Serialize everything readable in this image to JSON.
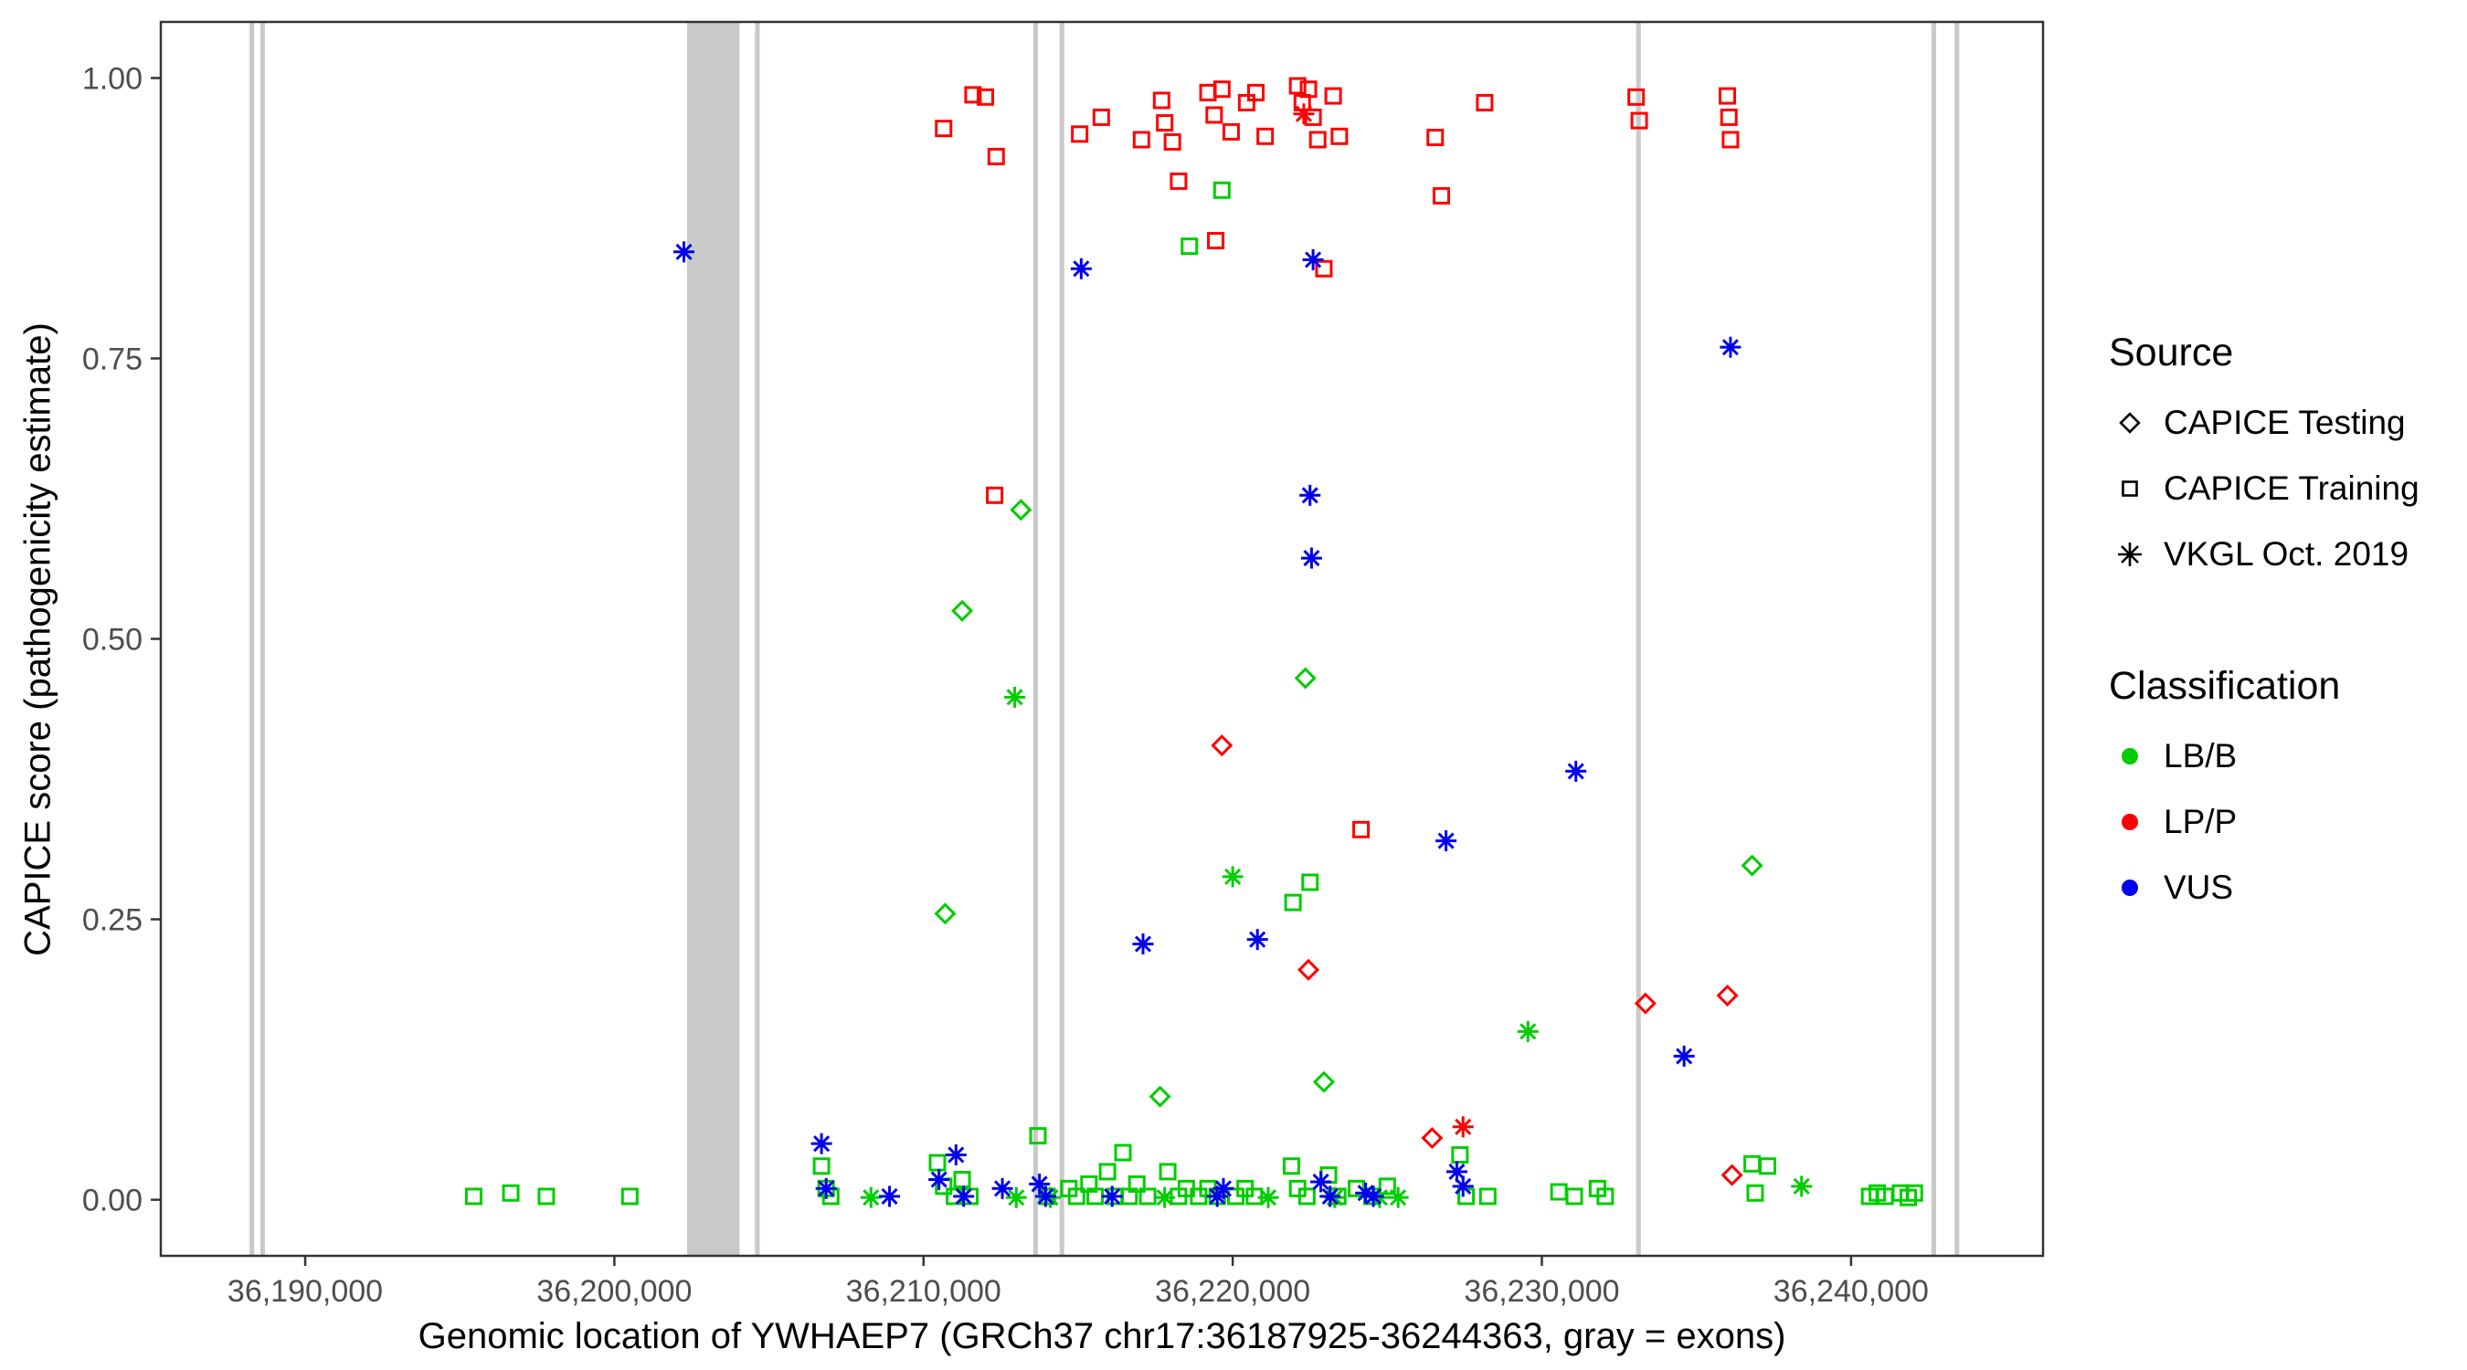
{
  "figure": {
    "background": "#ffffff",
    "panel_border": "#333333",
    "tick_color": "#333333",
    "tick_label_color": "#4d4d4d"
  },
  "legend": {
    "source": {
      "title": "Source",
      "items": [
        {
          "label": "CAPICE Testing",
          "shape": "diamond"
        },
        {
          "label": "CAPICE Training",
          "shape": "square"
        },
        {
          "label": "VKGL Oct. 2019",
          "shape": "asterisk"
        }
      ]
    },
    "classification": {
      "title": "Classification",
      "items": [
        {
          "label": "LB/B",
          "color": "#00CD00"
        },
        {
          "label": "LP/P",
          "color": "#FF0000"
        },
        {
          "label": "VUS",
          "color": "#0000EE"
        }
      ]
    }
  },
  "chart_data": {
    "type": "scatter",
    "title": "",
    "xlabel": "Genomic location of YWHAEP7 (GRCh37 chr17:36187925-36244363, gray = exons)",
    "ylabel": "CAPICE score (pathogenicity estimate)",
    "xlim": [
      36185330,
      36246210
    ],
    "ylim": [
      -0.05,
      1.05
    ],
    "x_ticks": [
      36190000,
      36200000,
      36210000,
      36220000,
      36230000,
      36240000
    ],
    "x_tick_labels": [
      "36,190,000",
      "36,200,000",
      "36,210,000",
      "36,220,000",
      "36,230,000",
      "36,240,000"
    ],
    "y_ticks": [
      0,
      0.25,
      0.5,
      0.75,
      1
    ],
    "y_tick_labels": [
      "0.00",
      "0.25",
      "0.50",
      "0.75",
      "1.00"
    ],
    "grid": false,
    "legend_position": "right",
    "exon_color": "#C9C9C9",
    "exons": [
      [
        36188200,
        36188350
      ],
      [
        36188550,
        36188700
      ],
      [
        36202350,
        36204050
      ],
      [
        36204550,
        36204700
      ],
      [
        36213550,
        36213700
      ],
      [
        36214400,
        36214550
      ],
      [
        36233050,
        36233200
      ],
      [
        36242600,
        36242750
      ],
      [
        36243350,
        36243500
      ]
    ],
    "series": [
      {
        "name": "CAPICE Testing / LB/B",
        "source": "CAPICE Testing",
        "classification": "LB/B",
        "shape": "diamond",
        "color": "#00CD00",
        "points": [
          [
            36210700,
            0.255
          ],
          [
            36211250,
            0.525
          ],
          [
            36213150,
            0.615
          ],
          [
            36217650,
            0.092
          ],
          [
            36222350,
            0.465
          ],
          [
            36222950,
            0.105
          ],
          [
            36236800,
            0.298
          ]
        ]
      },
      {
        "name": "CAPICE Testing / LP/P",
        "source": "CAPICE Testing",
        "classification": "LP/P",
        "shape": "diamond",
        "color": "#FF0000",
        "points": [
          [
            36219650,
            0.405
          ],
          [
            36222450,
            0.205
          ],
          [
            36226450,
            0.055
          ],
          [
            36233350,
            0.175
          ],
          [
            36236000,
            0.182
          ],
          [
            36236150,
            0.022
          ]
        ]
      },
      {
        "name": "CAPICE Training / LB/B",
        "source": "CAPICE Training",
        "classification": "LB/B",
        "shape": "square",
        "color": "#00CD00",
        "points": [
          [
            36195450,
            0.003
          ],
          [
            36196650,
            0.006
          ],
          [
            36197800,
            0.003
          ],
          [
            36200500,
            0.003
          ],
          [
            36206700,
            0.03
          ],
          [
            36206850,
            0.01
          ],
          [
            36207000,
            0.003
          ],
          [
            36210450,
            0.033
          ],
          [
            36210650,
            0.012
          ],
          [
            36211000,
            0.003
          ],
          [
            36211250,
            0.018
          ],
          [
            36211500,
            0.003
          ],
          [
            36213700,
            0.057
          ],
          [
            36214000,
            0.003
          ],
          [
            36214700,
            0.01
          ],
          [
            36214950,
            0.003
          ],
          [
            36215350,
            0.014
          ],
          [
            36215550,
            0.003
          ],
          [
            36215950,
            0.025
          ],
          [
            36216200,
            0.003
          ],
          [
            36216450,
            0.042
          ],
          [
            36216650,
            0.003
          ],
          [
            36216900,
            0.014
          ],
          [
            36217250,
            0.003
          ],
          [
            36217900,
            0.025
          ],
          [
            36218250,
            0.003
          ],
          [
            36218500,
            0.01
          ],
          [
            36218900,
            0.003
          ],
          [
            36219200,
            0.01
          ],
          [
            36219500,
            0.003
          ],
          [
            36220100,
            0.003
          ],
          [
            36220400,
            0.01
          ],
          [
            36220700,
            0.003
          ],
          [
            36221900,
            0.03
          ],
          [
            36222100,
            0.01
          ],
          [
            36222400,
            0.003
          ],
          [
            36223100,
            0.022
          ],
          [
            36223400,
            0.003
          ],
          [
            36224000,
            0.01
          ],
          [
            36224500,
            0.003
          ],
          [
            36225000,
            0.012
          ],
          [
            36227350,
            0.04
          ],
          [
            36227550,
            0.003
          ],
          [
            36228250,
            0.003
          ],
          [
            36230550,
            0.007
          ],
          [
            36231050,
            0.003
          ],
          [
            36231800,
            0.01
          ],
          [
            36232050,
            0.003
          ],
          [
            36236800,
            0.032
          ],
          [
            36236900,
            0.006
          ],
          [
            36237300,
            0.03
          ],
          [
            36240600,
            0.003
          ],
          [
            36240850,
            0.006
          ],
          [
            36241100,
            0.003
          ],
          [
            36241600,
            0.006
          ],
          [
            36241850,
            0.002
          ],
          [
            36242050,
            0.006
          ],
          [
            36218600,
            0.85
          ],
          [
            36219650,
            0.9
          ],
          [
            36221950,
            0.265
          ],
          [
            36222500,
            0.283
          ]
        ]
      },
      {
        "name": "CAPICE Training / LP/P",
        "source": "CAPICE Training",
        "classification": "LP/P",
        "shape": "square",
        "color": "#FF0000",
        "points": [
          [
            36210650,
            0.955
          ],
          [
            36211600,
            0.985
          ],
          [
            36212000,
            0.983
          ],
          [
            36212350,
            0.93
          ],
          [
            36212300,
            0.628
          ],
          [
            36215050,
            0.95
          ],
          [
            36215750,
            0.965
          ],
          [
            36217050,
            0.945
          ],
          [
            36217700,
            0.98
          ],
          [
            36217800,
            0.96
          ],
          [
            36218050,
            0.943
          ],
          [
            36218250,
            0.908
          ],
          [
            36219200,
            0.987
          ],
          [
            36219400,
            0.967
          ],
          [
            36219450,
            0.855
          ],
          [
            36219650,
            0.99
          ],
          [
            36219950,
            0.952
          ],
          [
            36220450,
            0.978
          ],
          [
            36220750,
            0.987
          ],
          [
            36221050,
            0.948
          ],
          [
            36222100,
            0.993
          ],
          [
            36222250,
            0.978
          ],
          [
            36222450,
            0.99
          ],
          [
            36222600,
            0.965
          ],
          [
            36222750,
            0.945
          ],
          [
            36222950,
            0.83
          ],
          [
            36223250,
            0.984
          ],
          [
            36223450,
            0.948
          ],
          [
            36224150,
            0.33
          ],
          [
            36226550,
            0.947
          ],
          [
            36226750,
            0.895
          ],
          [
            36228150,
            0.978
          ],
          [
            36233050,
            0.983
          ],
          [
            36233150,
            0.962
          ],
          [
            36236000,
            0.984
          ],
          [
            36236050,
            0.965
          ],
          [
            36236100,
            0.945
          ]
        ]
      },
      {
        "name": "VKGL Oct. 2019 / LB/B",
        "source": "VKGL Oct. 2019",
        "classification": "LB/B",
        "shape": "asterisk",
        "color": "#00CD00",
        "points": [
          [
            36212950,
            0.448
          ],
          [
            36220000,
            0.288
          ],
          [
            36229550,
            0.15
          ],
          [
            36238400,
            0.012
          ],
          [
            36208300,
            0.002
          ],
          [
            36213000,
            0.002
          ],
          [
            36214100,
            0.002
          ],
          [
            36217800,
            0.002
          ],
          [
            36221150,
            0.002
          ],
          [
            36223300,
            0.002
          ],
          [
            36224750,
            0.002
          ],
          [
            36225350,
            0.002
          ]
        ]
      },
      {
        "name": "VKGL Oct. 2019 / LP/P",
        "source": "VKGL Oct. 2019",
        "classification": "LP/P",
        "shape": "asterisk",
        "color": "#FF0000",
        "points": [
          [
            36222300,
            0.968
          ],
          [
            36227450,
            0.065
          ]
        ]
      },
      {
        "name": "VKGL Oct. 2019 / VUS",
        "source": "VKGL Oct. 2019",
        "classification": "VUS",
        "shape": "asterisk",
        "color": "#0000EE",
        "points": [
          [
            36202250,
            0.845
          ],
          [
            36215100,
            0.83
          ],
          [
            36222600,
            0.838
          ],
          [
            36222500,
            0.628
          ],
          [
            36222550,
            0.572
          ],
          [
            36236100,
            0.76
          ],
          [
            36231100,
            0.382
          ],
          [
            36226900,
            0.32
          ],
          [
            36217100,
            0.228
          ],
          [
            36220800,
            0.232
          ],
          [
            36234600,
            0.128
          ],
          [
            36206700,
            0.05
          ],
          [
            36206850,
            0.01
          ],
          [
            36208900,
            0.003
          ],
          [
            36210500,
            0.018
          ],
          [
            36211050,
            0.04
          ],
          [
            36211300,
            0.003
          ],
          [
            36212550,
            0.01
          ],
          [
            36213750,
            0.014
          ],
          [
            36213950,
            0.003
          ],
          [
            36216100,
            0.003
          ],
          [
            36219500,
            0.003
          ],
          [
            36219700,
            0.01
          ],
          [
            36222850,
            0.016
          ],
          [
            36223150,
            0.003
          ],
          [
            36224300,
            0.006
          ],
          [
            36224550,
            0.003
          ],
          [
            36227250,
            0.025
          ],
          [
            36227450,
            0.012
          ]
        ]
      }
    ]
  }
}
